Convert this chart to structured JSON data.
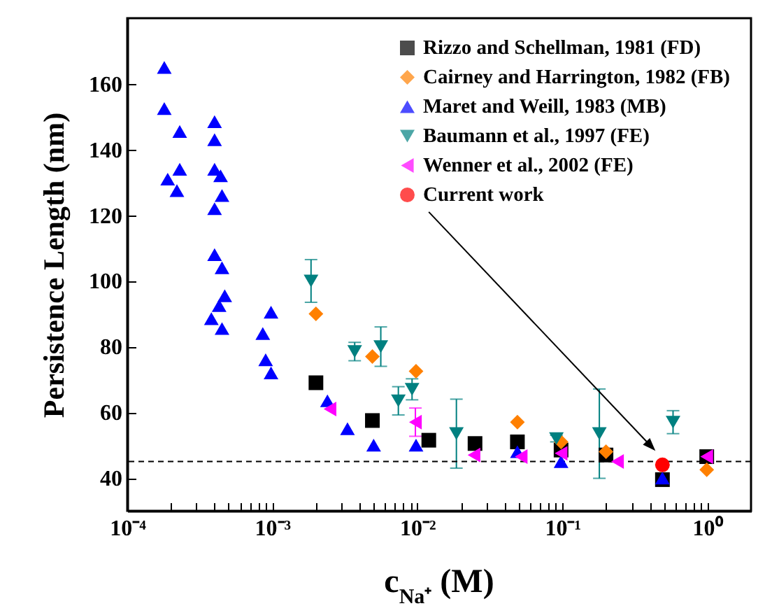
{
  "chart_data": {
    "type": "scatter",
    "xlabel": "c$_{Na⁺}$ (M)",
    "ylabel": "Persistence Length (nm)",
    "log": "x",
    "grid": false,
    "legend": "top right",
    "xlim": [
      0.0001,
      2
    ],
    "ylim": [
      30,
      180
    ],
    "xticks": [
      {
        "value": 0.0001,
        "label": "10⁻⁴"
      },
      {
        "value": 0.0002,
        "label": null
      },
      {
        "value": 0.0003,
        "label": null
      },
      {
        "value": 0.0004,
        "label": null
      },
      {
        "value": 0.0005,
        "label": null
      },
      {
        "value": 0.0006,
        "label": null
      },
      {
        "value": 0.0007,
        "label": null
      },
      {
        "value": 0.0008,
        "label": null
      },
      {
        "value": 0.0009,
        "label": null
      },
      {
        "value": 0.001,
        "label": "10⁻³"
      },
      {
        "value": 0.002,
        "label": null
      },
      {
        "value": 0.003,
        "label": null
      },
      {
        "value": 0.004,
        "label": null
      },
      {
        "value": 0.005,
        "label": null
      },
      {
        "value": 0.006,
        "label": null
      },
      {
        "value": 0.007,
        "label": null
      },
      {
        "value": 0.008,
        "label": null
      },
      {
        "value": 0.009,
        "label": null
      },
      {
        "value": 0.01,
        "label": "10⁻²"
      },
      {
        "value": 0.02,
        "label": null
      },
      {
        "value": 0.03,
        "label": null
      },
      {
        "value": 0.04,
        "label": null
      },
      {
        "value": 0.05,
        "label": null
      },
      {
        "value": 0.06,
        "label": null
      },
      {
        "value": 0.07,
        "label": null
      },
      {
        "value": 0.08,
        "label": null
      },
      {
        "value": 0.09,
        "label": null
      },
      {
        "value": 0.1,
        "label": "10⁻¹"
      },
      {
        "value": 0.2,
        "label": null
      },
      {
        "value": 0.3,
        "label": null
      },
      {
        "value": 0.4,
        "label": null
      },
      {
        "value": 0.5,
        "label": null
      },
      {
        "value": 0.6,
        "label": null
      },
      {
        "value": 0.7,
        "label": null
      },
      {
        "value": 0.8,
        "label": null
      },
      {
        "value": 0.9,
        "label": null
      },
      {
        "value": 1,
        "label": "10⁰"
      }
    ],
    "yticks": [
      40,
      60,
      80,
      100,
      120,
      140,
      160
    ],
    "ref_lines": [
      {
        "axis": "y",
        "value": 45,
        "line_style": "dashed",
        "color": "#000000"
      }
    ],
    "series": [
      {
        "name": "Rizzo and Schellman, 1981 (FD)",
        "color": "#000000",
        "marker": "square",
        "x": [
          0.002,
          0.0049,
          0.012,
          0.025,
          0.049,
          0.098,
          0.2,
          0.49,
          0.99
        ],
        "values": [
          69,
          57.5,
          51.5,
          50.5,
          51,
          48.5,
          47,
          39.5,
          46.5
        ]
      },
      {
        "name": "Cairney and Harrington, 1982 (FB)",
        "color": "#ff8000",
        "marker": "diamond",
        "x": [
          0.002,
          0.0049,
          0.0098,
          0.049,
          0.098,
          0.2,
          0.99
        ],
        "values": [
          90,
          77,
          72.5,
          57,
          51,
          48,
          42.5
        ]
      },
      {
        "name": "Maret and Weill, 1983 (MB)",
        "color": "#0000ff",
        "marker": "triangle",
        "x": [
          0.00018,
          0.00018,
          0.00023,
          0.0004,
          0.0004,
          0.00023,
          0.00019,
          0.00022,
          0.0004,
          0.00044,
          0.00045,
          0.0004,
          0.0004,
          0.00045,
          0.00047,
          0.00043,
          0.00038,
          0.00045,
          0.00098,
          0.00086,
          0.0009,
          0.00098,
          0.0024,
          0.0033,
          0.005,
          0.0098,
          0.049,
          0.098,
          0.49
        ],
        "values": [
          165,
          152.5,
          145.5,
          148.5,
          143,
          134,
          131,
          127.5,
          134,
          132,
          126,
          122,
          108,
          104,
          95.5,
          92.5,
          88.5,
          85.5,
          90.5,
          84,
          76,
          72,
          63.5,
          55,
          50,
          50,
          48,
          45,
          40
        ]
      },
      {
        "name": "Baumann et al., 1997 (FE)",
        "color": "#008080",
        "marker": "triangle-down",
        "x": [
          0.00185,
          0.0037,
          0.0056,
          0.0074,
          0.0092,
          0.0186,
          0.091,
          0.18,
          0.58
        ],
        "values": [
          100,
          78.5,
          80,
          63.5,
          67,
          53.5,
          52,
          53.5,
          57
        ],
        "errors": [
          6.5,
          2.8,
          6,
          4.3,
          3.2,
          10.5,
          1,
          13.6,
          3.5
        ]
      },
      {
        "name": "Wenner et al., 2002 (FE)",
        "color": "#ff00ff",
        "marker": "triangle-left",
        "x": [
          0.0025,
          0.0097,
          0.0246,
          0.052,
          0.098,
          0.24,
          0.99
        ],
        "values": [
          61,
          57,
          47,
          46.5,
          47.5,
          45,
          46.5
        ],
        "errors": [
          null,
          4.3,
          null,
          null,
          null,
          null,
          null
        ]
      },
      {
        "name": "Current work",
        "color": "#ff0000",
        "marker": "circle",
        "x": [
          0.49
        ],
        "values": [
          44
        ]
      }
    ]
  }
}
